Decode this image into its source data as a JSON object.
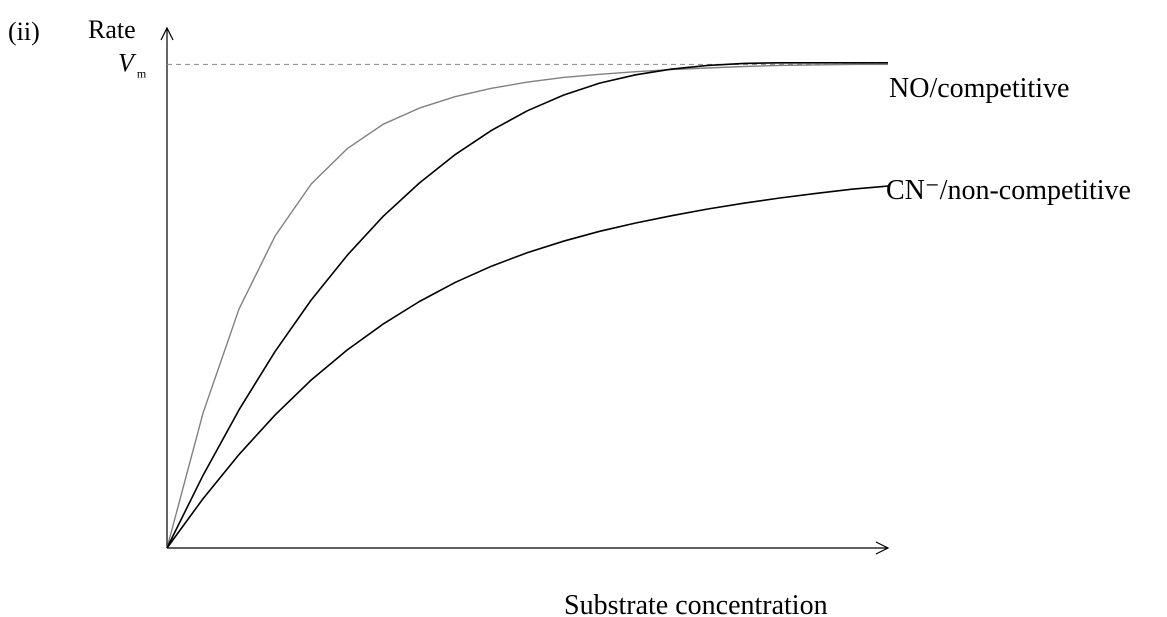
{
  "question_label": "(ii)",
  "chart_data": {
    "type": "line",
    "title": "",
    "ylabel": "Rate",
    "xlabel": "Substrate concentration",
    "xlim": [
      0,
      10
    ],
    "ylim": [
      0,
      10
    ],
    "grid": false,
    "ticks": {
      "y": [
        {
          "value": 9.3,
          "symbol": "V",
          "subscript": "m",
          "dashed": true
        }
      ]
    },
    "series": [
      {
        "name": "",
        "color": "#808080",
        "x": [
          0,
          0.5,
          1.0,
          1.5,
          2.0,
          2.5,
          3.0,
          3.5,
          4.0,
          4.5,
          5.0,
          5.5,
          6.0,
          6.5,
          7.0,
          7.5,
          8.0,
          8.5,
          9.0,
          9.5,
          10.0
        ],
        "values": [
          0,
          2.6,
          4.6,
          6.0,
          7.0,
          7.68,
          8.15,
          8.46,
          8.68,
          8.84,
          8.96,
          9.05,
          9.11,
          9.16,
          9.2,
          9.23,
          9.26,
          9.28,
          9.29,
          9.3,
          9.3
        ]
      },
      {
        "name": "NO/competitive",
        "color": "#000000",
        "x": [
          0,
          0.5,
          1.0,
          1.5,
          2.0,
          2.5,
          3.0,
          3.5,
          4.0,
          4.5,
          5.0,
          5.5,
          6.0,
          6.5,
          7.0,
          7.5,
          8.0,
          8.5,
          9.0,
          9.5,
          10.0
        ],
        "values": [
          0,
          1.4,
          2.66,
          3.78,
          4.77,
          5.63,
          6.38,
          7.02,
          7.57,
          8.03,
          8.41,
          8.71,
          8.94,
          9.1,
          9.21,
          9.28,
          9.32,
          9.33,
          9.33,
          9.33,
          9.33
        ]
      },
      {
        "name": "CN⁻/non-competitive",
        "color": "#000000",
        "x": [
          0,
          0.5,
          1.0,
          1.5,
          2.0,
          2.5,
          3.0,
          3.5,
          4.0,
          4.5,
          5.0,
          5.5,
          6.0,
          6.5,
          7.0,
          7.5,
          8.0,
          8.5,
          9.0,
          9.5,
          10.0
        ],
        "values": [
          0,
          0.95,
          1.8,
          2.56,
          3.23,
          3.81,
          4.31,
          4.74,
          5.11,
          5.42,
          5.68,
          5.9,
          6.09,
          6.25,
          6.39,
          6.52,
          6.63,
          6.73,
          6.82,
          6.9,
          6.96
        ]
      }
    ]
  }
}
